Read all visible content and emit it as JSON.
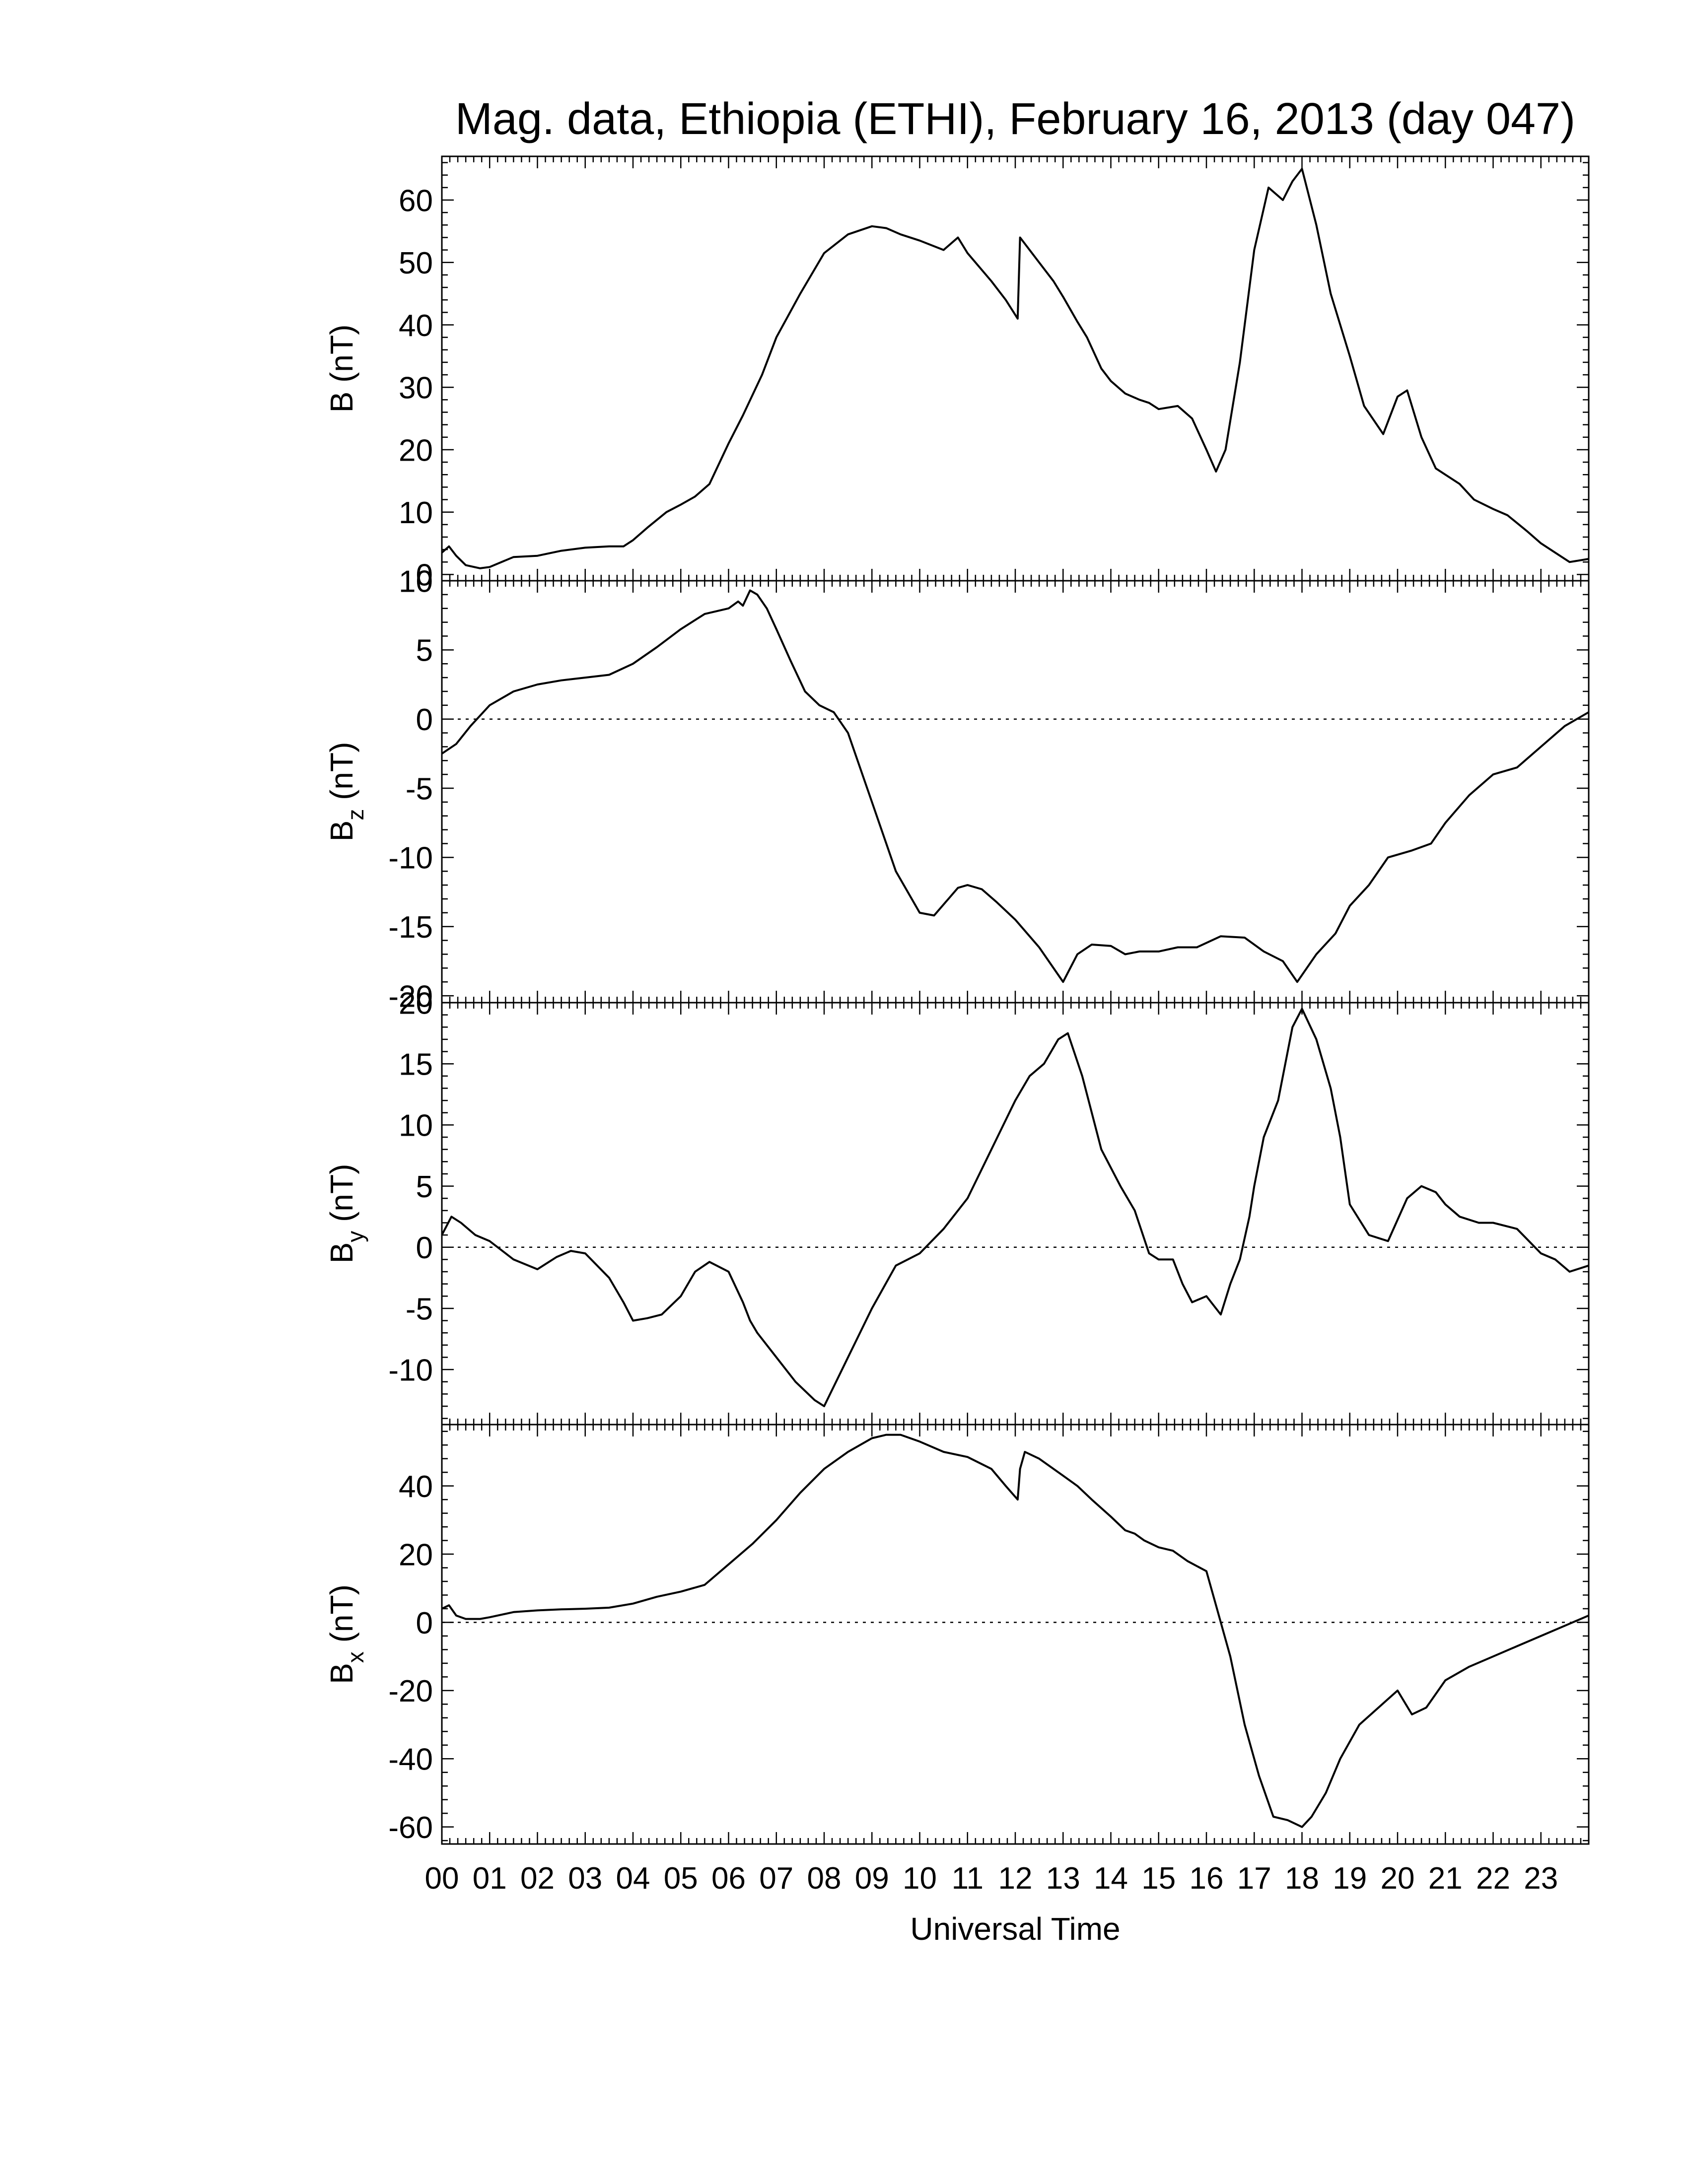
{
  "chart_data": {
    "title": "Mag. data, Ethiopia (ETHI), February 16, 2013 (day 047)",
    "xlabel": "Universal Time",
    "xlim": [
      0,
      24
    ],
    "x_ticks": [
      "00",
      "01",
      "02",
      "03",
      "04",
      "05",
      "06",
      "07",
      "08",
      "09",
      "10",
      "11",
      "12",
      "13",
      "14",
      "15",
      "16",
      "17",
      "18",
      "19",
      "20",
      "21",
      "22",
      "23"
    ],
    "line_color": "#000000",
    "grid": false,
    "panels": [
      {
        "type": "line",
        "name": "B",
        "ylabel": "B (nT)",
        "ylim": [
          -1,
          67
        ],
        "y_ticks": [
          0,
          10,
          20,
          30,
          40,
          50,
          60
        ],
        "zero_line": false,
        "x": [
          0,
          0.15,
          0.3,
          0.5,
          0.8,
          1,
          1.5,
          2,
          2.5,
          3,
          3.5,
          3.8,
          4,
          4.3,
          4.7,
          5,
          5.3,
          5.6,
          6,
          6.3,
          6.7,
          7,
          7.5,
          8,
          8.5,
          9,
          9.3,
          9.6,
          10,
          10.5,
          10.8,
          11,
          11.5,
          11.8,
          12.05,
          12.1,
          12.15,
          12.5,
          12.8,
          13,
          13.3,
          13.5,
          13.8,
          14,
          14.3,
          14.6,
          14.8,
          15,
          15.4,
          15.7,
          16,
          16.2,
          16.4,
          16.7,
          17,
          17.3,
          17.6,
          17.8,
          18,
          18.3,
          18.6,
          19,
          19.3,
          19.7,
          20,
          20.2,
          20.5,
          20.8,
          21,
          21.3,
          21.6,
          22,
          22.3,
          22.7,
          23,
          23.3,
          23.6,
          24
        ],
        "y": [
          3.5,
          4.5,
          3,
          1.5,
          1,
          1.2,
          2.8,
          3,
          3.8,
          4.3,
          4.5,
          4.5,
          5.5,
          7.5,
          10,
          11.2,
          12.5,
          14.5,
          21,
          25.5,
          32,
          38,
          45,
          51.5,
          54.5,
          55.8,
          55.5,
          54.5,
          53.5,
          52,
          54,
          51.5,
          47,
          44,
          41,
          54,
          53.5,
          50,
          47,
          44.5,
          40.5,
          38,
          33,
          31,
          29,
          28,
          27.5,
          26.5,
          27,
          25,
          20,
          16.5,
          20,
          34,
          52,
          62,
          60,
          63,
          65,
          56,
          45,
          35,
          27,
          22.5,
          28.5,
          29.5,
          22,
          17,
          16,
          14.5,
          12,
          10.5,
          9.5,
          7,
          5,
          3.5,
          2,
          2.5
        ]
      },
      {
        "type": "line",
        "name": "Bz",
        "ylabel": "Bz (nT)",
        "ylim": [
          -20.5,
          10
        ],
        "y_ticks": [
          -20,
          -15,
          -10,
          -5,
          0,
          5,
          10
        ],
        "zero_line": true,
        "x": [
          0,
          0.3,
          0.6,
          1,
          1.5,
          2,
          2.5,
          3,
          3.5,
          4,
          4.5,
          5,
          5.5,
          6,
          6.2,
          6.3,
          6.45,
          6.6,
          6.8,
          7,
          7.3,
          7.6,
          7.9,
          8.2,
          8.5,
          9,
          9.5,
          10,
          10.3,
          10.6,
          10.8,
          11,
          11.3,
          11.6,
          12,
          12.5,
          13,
          13.3,
          13.6,
          14,
          14.3,
          14.6,
          15,
          15.4,
          15.8,
          16.3,
          16.8,
          17.2,
          17.6,
          17.9,
          18.3,
          18.7,
          19,
          19.4,
          19.8,
          20.3,
          20.7,
          21,
          21.5,
          22,
          22.5,
          23,
          23.5,
          24
        ],
        "y": [
          -2.5,
          -1.8,
          -0.5,
          1,
          2,
          2.5,
          2.8,
          3,
          3.2,
          4,
          5.2,
          6.5,
          7.6,
          8,
          8.5,
          8.2,
          9.3,
          9,
          8,
          6.5,
          4.2,
          2,
          1,
          0.5,
          -1,
          -6,
          -11,
          -14,
          -14.2,
          -13,
          -12.2,
          -12,
          -12.3,
          -13.2,
          -14.5,
          -16.5,
          -19,
          -17,
          -16.3,
          -16.4,
          -17,
          -16.8,
          -16.8,
          -16.5,
          -16.5,
          -15.7,
          -15.8,
          -16.8,
          -17.5,
          -19,
          -17,
          -15.5,
          -13.5,
          -12,
          -10,
          -9.5,
          -9,
          -7.5,
          -5.5,
          -4,
          -3.5,
          -2,
          -0.5,
          0.5
        ]
      },
      {
        "type": "line",
        "name": "By",
        "ylabel": "By (nT)",
        "ylim": [
          -14.5,
          20
        ],
        "y_ticks": [
          -10,
          -5,
          0,
          5,
          10,
          15,
          20
        ],
        "zero_line": true,
        "x": [
          0,
          0.2,
          0.4,
          0.7,
          1,
          1.5,
          2,
          2.4,
          2.7,
          3,
          3.5,
          3.8,
          4,
          4.3,
          4.6,
          5,
          5.3,
          5.6,
          6,
          6.3,
          6.45,
          6.6,
          7,
          7.4,
          7.8,
          8,
          8.5,
          9,
          9.5,
          10,
          10.5,
          11,
          11.5,
          12,
          12.3,
          12.6,
          12.9,
          13.1,
          13.4,
          13.8,
          14.2,
          14.5,
          14.8,
          15,
          15.3,
          15.5,
          15.7,
          16,
          16.3,
          16.5,
          16.7,
          16.9,
          17,
          17.2,
          17.5,
          17.8,
          18,
          18.3,
          18.6,
          18.8,
          19,
          19.4,
          19.8,
          20.2,
          20.5,
          20.8,
          21,
          21.3,
          21.7,
          22,
          22.5,
          23,
          23.3,
          23.6,
          24
        ],
        "y": [
          1,
          2.5,
          2,
          1,
          0.5,
          -1,
          -1.8,
          -0.8,
          -0.3,
          -0.5,
          -2.5,
          -4.5,
          -6,
          -5.8,
          -5.5,
          -4,
          -2,
          -1.2,
          -2,
          -4.5,
          -6,
          -7,
          -9,
          -11,
          -12.5,
          -13,
          -9,
          -5,
          -1.5,
          -0.5,
          1.5,
          4,
          8,
          12,
          14,
          15,
          17,
          17.5,
          14,
          8,
          5,
          3,
          -0.5,
          -1,
          -1,
          -3,
          -4.5,
          -4,
          -5.5,
          -3,
          -1,
          2.5,
          5,
          9,
          12,
          18,
          19.5,
          17,
          13,
          9,
          3.5,
          1,
          0.5,
          4,
          5,
          4.5,
          3.5,
          2.5,
          2,
          2,
          1.5,
          -0.5,
          -1,
          -2,
          -1.5
        ]
      },
      {
        "type": "line",
        "name": "Bx",
        "ylabel": "Bx (nT)",
        "ylim": [
          -65,
          58
        ],
        "y_ticks": [
          -60,
          -40,
          -20,
          0,
          20,
          40
        ],
        "zero_line": true,
        "x": [
          0,
          0.15,
          0.3,
          0.5,
          0.8,
          1,
          1.5,
          2,
          2.5,
          3,
          3.5,
          4,
          4.5,
          5,
          5.5,
          6,
          6.5,
          7,
          7.5,
          8,
          8.5,
          9,
          9.3,
          9.6,
          10,
          10.5,
          11,
          11.5,
          11.8,
          12.05,
          12.1,
          12.2,
          12.5,
          13,
          13.3,
          13.6,
          14,
          14.3,
          14.5,
          14.7,
          15,
          15.3,
          15.6,
          16,
          16.2,
          16.5,
          16.8,
          17.1,
          17.4,
          17.7,
          18,
          18.2,
          18.5,
          18.8,
          19.2,
          19.6,
          20,
          20.3,
          20.6,
          21,
          21.5,
          22,
          22.5,
          23,
          23.5,
          24
        ],
        "y": [
          4,
          5,
          2,
          1,
          1,
          1.5,
          3,
          3.5,
          3.8,
          4,
          4.3,
          5.5,
          7.5,
          9,
          11,
          17,
          23,
          30,
          38,
          45,
          50,
          54,
          55,
          55,
          53,
          50,
          48.5,
          45,
          40,
          36,
          45,
          50,
          48,
          43,
          40,
          36,
          31,
          27,
          26,
          24,
          22,
          21,
          18,
          15,
          5,
          -10,
          -30,
          -45,
          -57,
          -58,
          -60,
          -57,
          -50,
          -40,
          -30,
          -25,
          -20,
          -27,
          -25,
          -17,
          -13,
          -10,
          -7,
          -4,
          -1,
          2
        ]
      }
    ]
  }
}
